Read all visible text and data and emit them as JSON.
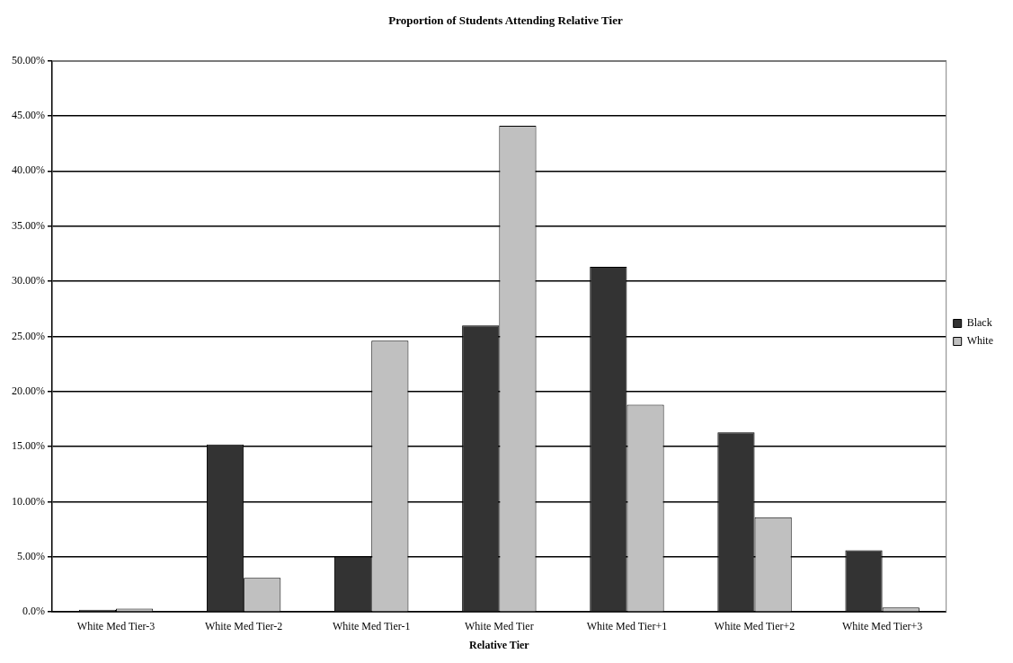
{
  "chart_data": {
    "type": "bar",
    "title": "Proportion of Students Attending Relative Tier",
    "xlabel": "Relative Tier",
    "categories": [
      "White Med Tier-3",
      "White Med Tier-2",
      "White Med Tier-1",
      "White Med Tier",
      "White Med Tier+1",
      "White Med Tier+2",
      "White Med Tier+3"
    ],
    "series": [
      {
        "name": "Black",
        "color": "#333333",
        "values": [
          0.2,
          15.2,
          5.0,
          26.0,
          31.3,
          16.3,
          5.6
        ]
      },
      {
        "name": "White",
        "color": "#c0c0c0",
        "values": [
          0.3,
          3.1,
          24.6,
          44.1,
          18.8,
          8.6,
          0.4
        ]
      }
    ],
    "ylim": [
      0,
      50
    ],
    "yticks": [
      {
        "value": 0,
        "label": "0.0%"
      },
      {
        "value": 5,
        "label": "5.00%"
      },
      {
        "value": 10,
        "label": "10.00%"
      },
      {
        "value": 15,
        "label": "15.00%"
      },
      {
        "value": 20,
        "label": "20.00%"
      },
      {
        "value": 25,
        "label": "25.00%"
      },
      {
        "value": 30,
        "label": "30.00%"
      },
      {
        "value": 35,
        "label": "35.00%"
      },
      {
        "value": 40,
        "label": "40.00%"
      },
      {
        "value": 45,
        "label": "45.00%"
      },
      {
        "value": 50,
        "label": "50.00%"
      }
    ],
    "grid": "y",
    "legend": "right"
  }
}
